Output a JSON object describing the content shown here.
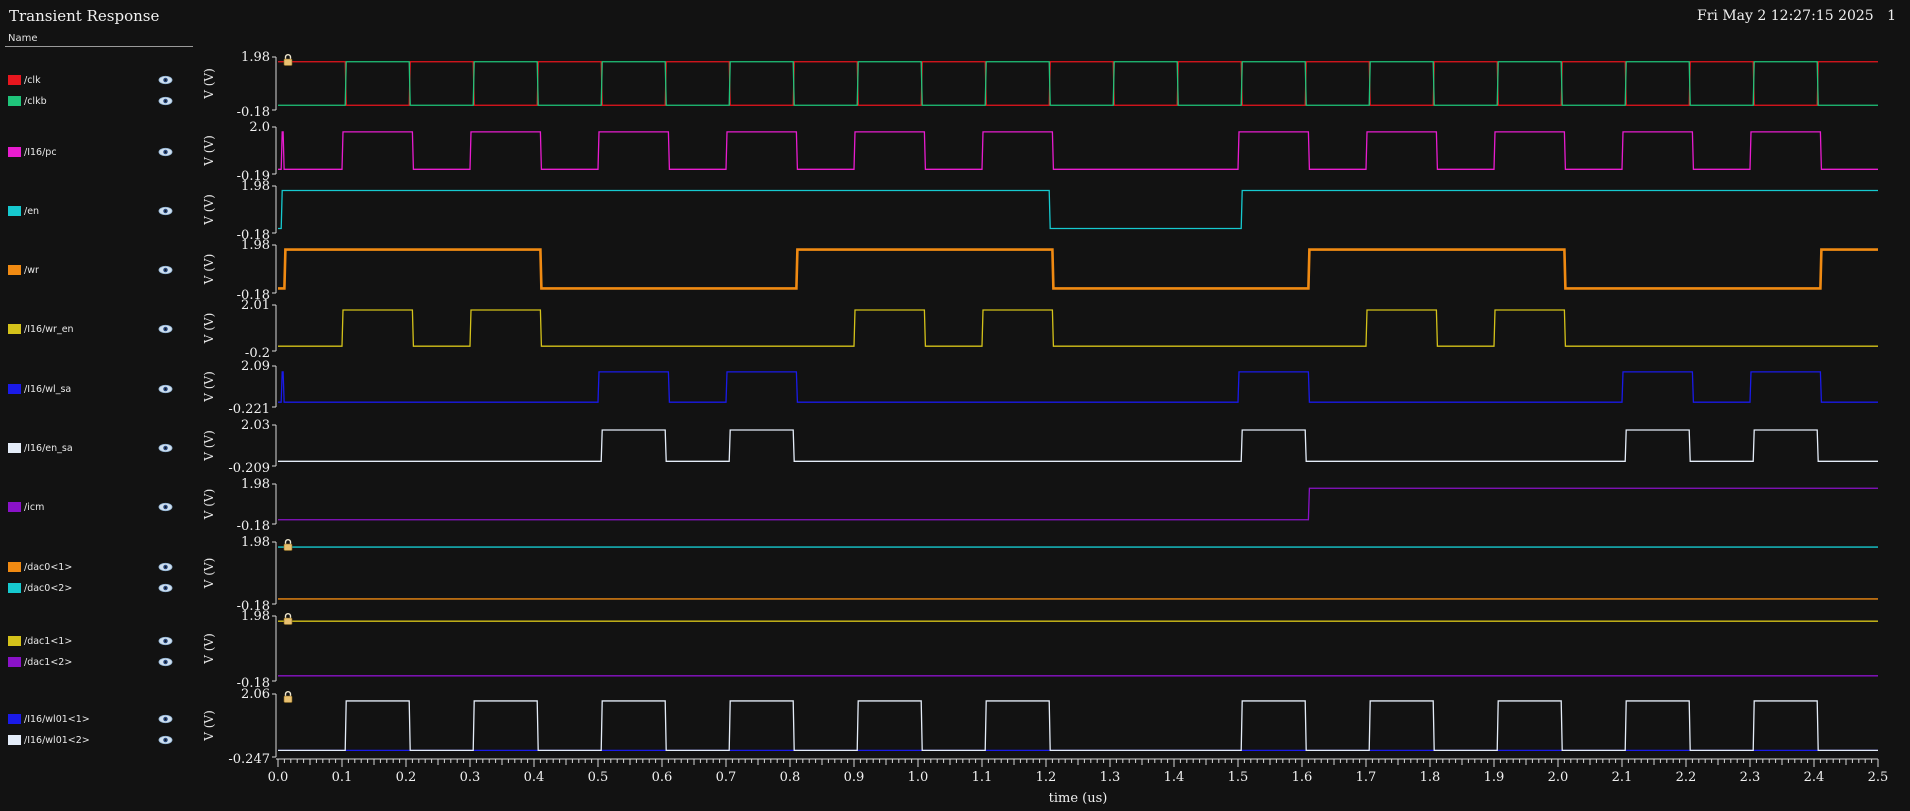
{
  "header": {
    "title": "Transient Response",
    "datetime": "Fri May 2 12:27:15 2025",
    "page": "1"
  },
  "legend": {
    "column_header": "Name"
  },
  "chart_data": {
    "type": "line",
    "xlabel": "time (us)",
    "xlim": [
      0,
      2.5
    ],
    "xticks": [
      "0.0",
      "0.1",
      "0.2",
      "0.3",
      "0.4",
      "0.5",
      "0.6",
      "0.7",
      "0.8",
      "0.9",
      "1.0",
      "1.1",
      "1.2",
      "1.3",
      "1.4",
      "1.5",
      "1.6",
      "1.7",
      "1.8",
      "1.9",
      "2.0",
      "2.1",
      "2.2",
      "2.3",
      "2.4",
      "2.5"
    ],
    "panels": [
      {
        "ylabel": "V (V)",
        "ymax": "1.98",
        "ymin": "-0.18",
        "ylim": [
          -0.18,
          1.98
        ],
        "locked": true,
        "series": [
          {
            "name": "/clk",
            "color": "#e8161e",
            "low": -0.1,
            "high": 1.9,
            "levels": [
              [
                0,
                1.9
              ],
              [
                0.105,
                -0.1
              ],
              [
                0.205,
                1.9
              ],
              [
                0.305,
                -0.1
              ],
              [
                0.405,
                1.9
              ],
              [
                0.505,
                -0.1
              ],
              [
                0.605,
                1.9
              ],
              [
                0.705,
                -0.1
              ],
              [
                0.805,
                1.9
              ],
              [
                0.905,
                -0.1
              ],
              [
                1.005,
                1.9
              ],
              [
                1.105,
                -0.1
              ],
              [
                1.205,
                1.9
              ],
              [
                1.305,
                -0.1
              ],
              [
                1.405,
                1.9
              ],
              [
                1.505,
                -0.1
              ],
              [
                1.605,
                1.9
              ],
              [
                1.705,
                -0.1
              ],
              [
                1.805,
                1.9
              ],
              [
                1.905,
                -0.1
              ],
              [
                2.005,
                1.9
              ],
              [
                2.105,
                -0.1
              ],
              [
                2.205,
                1.9
              ],
              [
                2.305,
                -0.1
              ],
              [
                2.405,
                1.9
              ]
            ]
          },
          {
            "name": "/clkb",
            "color": "#1fc47a",
            "low": -0.1,
            "high": 1.9,
            "levels": [
              [
                0,
                -0.1
              ],
              [
                0.01,
                -0.1
              ],
              [
                0.105,
                1.9
              ],
              [
                0.205,
                -0.1
              ],
              [
                0.305,
                1.9
              ],
              [
                0.405,
                -0.1
              ],
              [
                0.505,
                1.9
              ],
              [
                0.605,
                -0.1
              ],
              [
                0.705,
                1.9
              ],
              [
                0.805,
                -0.1
              ],
              [
                0.905,
                1.9
              ],
              [
                1.005,
                -0.1
              ],
              [
                1.105,
                1.9
              ],
              [
                1.205,
                -0.1
              ],
              [
                1.305,
                1.9
              ],
              [
                1.405,
                -0.1
              ],
              [
                1.505,
                1.9
              ],
              [
                1.605,
                -0.1
              ],
              [
                1.705,
                1.9
              ],
              [
                1.805,
                -0.1
              ],
              [
                1.905,
                1.9
              ],
              [
                2.005,
                -0.1
              ],
              [
                2.105,
                1.9
              ],
              [
                2.205,
                -0.1
              ],
              [
                2.305,
                1.9
              ],
              [
                2.405,
                -0.1
              ]
            ]
          }
        ]
      },
      {
        "ylabel": "V (V)",
        "ymax": "2.0",
        "ymin": "-0.19",
        "ylim": [
          -0.19,
          2.0
        ],
        "locked": false,
        "series": [
          {
            "name": "/I16/pc",
            "color": "#e81ccf",
            "levels": [
              [
                0,
                -0.1
              ],
              [
                0.005,
                1.9
              ],
              [
                0.008,
                -0.1
              ],
              [
                0.1,
                1.9
              ],
              [
                0.21,
                -0.1
              ],
              [
                0.3,
                1.9
              ],
              [
                0.41,
                -0.1
              ],
              [
                0.5,
                1.9
              ],
              [
                0.61,
                -0.1
              ],
              [
                0.7,
                1.9
              ],
              [
                0.81,
                -0.1
              ],
              [
                0.9,
                1.9
              ],
              [
                1.01,
                -0.1
              ],
              [
                1.1,
                1.9
              ],
              [
                1.21,
                -0.1
              ],
              [
                1.5,
                1.9
              ],
              [
                1.61,
                -0.1
              ],
              [
                1.7,
                1.9
              ],
              [
                1.81,
                -0.1
              ],
              [
                1.9,
                1.9
              ],
              [
                2.01,
                -0.1
              ],
              [
                2.1,
                1.9
              ],
              [
                2.21,
                -0.1
              ],
              [
                2.3,
                1.9
              ],
              [
                2.41,
                -0.1
              ]
            ]
          }
        ]
      },
      {
        "ylabel": "V (V)",
        "ymax": "1.98",
        "ymin": "-0.18",
        "ylim": [
          -0.18,
          1.98
        ],
        "locked": false,
        "series": [
          {
            "name": "/en",
            "color": "#16c9cf",
            "levels": [
              [
                0,
                -0.1
              ],
              [
                0.005,
                1.9
              ],
              [
                1.205,
                -0.1
              ],
              [
                1.505,
                1.9
              ]
            ]
          }
        ]
      },
      {
        "ylabel": "V (V)",
        "ymax": "1.98",
        "ymin": "-0.18",
        "ylim": [
          -0.18,
          1.98
        ],
        "locked": false,
        "thick": true,
        "series": [
          {
            "name": "/wr",
            "color": "#f08a12",
            "levels": [
              [
                0,
                -0.1
              ],
              [
                0.01,
                1.9
              ],
              [
                0.41,
                -0.1
              ],
              [
                0.81,
                1.9
              ],
              [
                1.21,
                -0.1
              ],
              [
                1.61,
                1.9
              ],
              [
                2.01,
                -0.1
              ],
              [
                2.41,
                1.9
              ]
            ]
          }
        ]
      },
      {
        "ylabel": "V (V)",
        "ymax": "2.01",
        "ymin": "-0.2",
        "ylim": [
          -0.2,
          2.01
        ],
        "locked": false,
        "series": [
          {
            "name": "/I16/wr_en",
            "color": "#d4c21a",
            "levels": [
              [
                0,
                -0.1
              ],
              [
                0.1,
                1.9
              ],
              [
                0.21,
                -0.1
              ],
              [
                0.3,
                1.9
              ],
              [
                0.41,
                -0.1
              ],
              [
                0.9,
                1.9
              ],
              [
                1.01,
                -0.1
              ],
              [
                1.1,
                1.9
              ],
              [
                1.21,
                -0.1
              ],
              [
                1.7,
                1.9
              ],
              [
                1.81,
                -0.1
              ],
              [
                1.9,
                1.9
              ],
              [
                2.01,
                -0.1
              ]
            ]
          }
        ]
      },
      {
        "ylabel": "V (V)",
        "ymax": "2.09",
        "ymin": "-0.221",
        "ylim": [
          -0.221,
          2.09
        ],
        "locked": false,
        "series": [
          {
            "name": "/I16/wl_sa",
            "color": "#1a1ae8",
            "levels": [
              [
                0,
                -0.1
              ],
              [
                0.005,
                1.9
              ],
              [
                0.008,
                -0.1
              ],
              [
                0.5,
                1.9
              ],
              [
                0.61,
                -0.1
              ],
              [
                0.7,
                1.9
              ],
              [
                0.81,
                -0.1
              ],
              [
                1.5,
                1.9
              ],
              [
                1.61,
                -0.1
              ],
              [
                2.1,
                1.9
              ],
              [
                2.21,
                -0.1
              ],
              [
                2.3,
                1.9
              ],
              [
                2.41,
                -0.1
              ]
            ]
          }
        ]
      },
      {
        "ylabel": "V (V)",
        "ymax": "2.03",
        "ymin": "-0.209",
        "ylim": [
          -0.209,
          2.03
        ],
        "locked": false,
        "series": [
          {
            "name": "/I16/en_sa",
            "color": "#e4ecf8",
            "levels": [
              [
                0,
                -0.1
              ],
              [
                0.505,
                1.9
              ],
              [
                0.605,
                -0.1
              ],
              [
                0.705,
                1.9
              ],
              [
                0.805,
                -0.1
              ],
              [
                1.505,
                1.9
              ],
              [
                1.605,
                -0.1
              ],
              [
                2.105,
                1.9
              ],
              [
                2.205,
                -0.1
              ],
              [
                2.305,
                1.9
              ],
              [
                2.405,
                -0.1
              ]
            ]
          }
        ]
      },
      {
        "ylabel": "V (V)",
        "ymax": "1.98",
        "ymin": "-0.18",
        "ylim": [
          -0.18,
          1.98
        ],
        "locked": false,
        "series": [
          {
            "name": "/icm",
            "color": "#8a12c8",
            "levels": [
              [
                0,
                -0.1
              ],
              [
                1.61,
                1.9
              ]
            ]
          }
        ]
      },
      {
        "ylabel": "V (V)",
        "ymax": "1.98",
        "ymin": "-0.18",
        "ylim": [
          -0.18,
          1.98
        ],
        "locked": true,
        "series": [
          {
            "name": "/dac0<1>",
            "color": "#f08a12",
            "levels": [
              [
                0,
                -0.1
              ]
            ]
          },
          {
            "name": "/dac0<2>",
            "color": "#16c9cf",
            "levels": [
              [
                0,
                1.9
              ]
            ]
          }
        ]
      },
      {
        "ylabel": "V (V)",
        "ymax": "1.98",
        "ymin": "-0.18",
        "ylim": [
          -0.18,
          1.98
        ],
        "locked": true,
        "series": [
          {
            "name": "/dac1<1>",
            "color": "#d4c21a",
            "levels": [
              [
                0,
                1.9
              ]
            ]
          },
          {
            "name": "/dac1<2>",
            "color": "#8a12c8",
            "levels": [
              [
                0,
                -0.1
              ]
            ]
          }
        ]
      },
      {
        "ylabel": "V (V)",
        "ymax": "2.06",
        "ymin": "-0.247",
        "ylim": [
          -0.247,
          2.06
        ],
        "locked": true,
        "series": [
          {
            "name": "/I16/wl01<1>",
            "color": "#1a1ae8",
            "levels": [
              [
                0,
                -0.1
              ]
            ]
          },
          {
            "name": "/I16/wl01<2>",
            "color": "#e4ecf8",
            "levels": [
              [
                0,
                -0.1
              ],
              [
                0.105,
                1.9
              ],
              [
                0.205,
                -0.1
              ],
              [
                0.305,
                1.9
              ],
              [
                0.405,
                -0.1
              ],
              [
                0.505,
                1.9
              ],
              [
                0.605,
                -0.1
              ],
              [
                0.705,
                1.9
              ],
              [
                0.805,
                -0.1
              ],
              [
                0.905,
                1.9
              ],
              [
                1.005,
                -0.1
              ],
              [
                1.105,
                1.9
              ],
              [
                1.205,
                -0.1
              ],
              [
                1.505,
                1.9
              ],
              [
                1.605,
                -0.1
              ],
              [
                1.705,
                1.9
              ],
              [
                1.805,
                -0.1
              ],
              [
                1.905,
                1.9
              ],
              [
                2.005,
                -0.1
              ],
              [
                2.105,
                1.9
              ],
              [
                2.205,
                -0.1
              ],
              [
                2.305,
                1.9
              ],
              [
                2.405,
                -0.1
              ]
            ]
          }
        ]
      }
    ]
  }
}
